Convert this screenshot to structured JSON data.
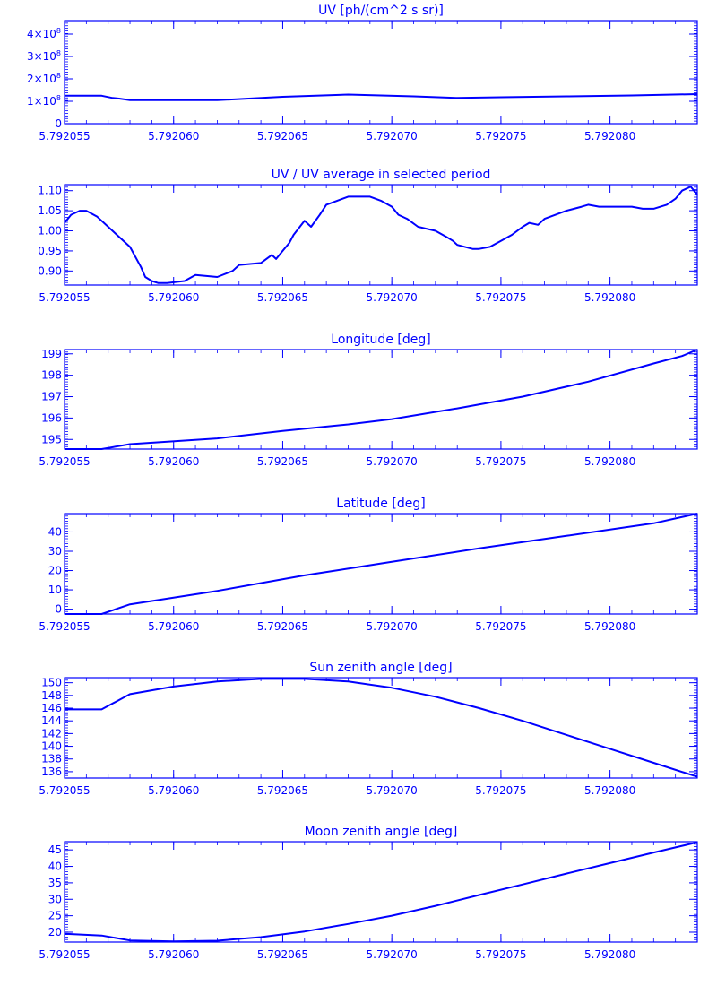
{
  "colors": {
    "foreground": "#0000ff",
    "background": "#ffffff"
  },
  "chart_data": [
    {
      "type": "line",
      "title": "UV [ph/(cm^2 s sr)]",
      "xlim": [
        5.792055,
        5.792084
      ],
      "ylim": [
        0,
        460000000.0
      ],
      "xticks": [
        "5.792055",
        "5.792060",
        "5.792065",
        "5.792070",
        "5.792075",
        "5.792080"
      ],
      "yticks": [
        {
          "value": 0,
          "mantissa": "0",
          "exp": ""
        },
        {
          "value": 100000000.0,
          "mantissa": "1×10",
          "exp": "8"
        },
        {
          "value": 200000000.0,
          "mantissa": "2×10",
          "exp": "8"
        },
        {
          "value": 300000000.0,
          "mantissa": "3×10",
          "exp": "8"
        },
        {
          "value": 400000000.0,
          "mantissa": "4×10",
          "exp": "8"
        }
      ],
      "series": [
        {
          "x": [
            5.792055,
            5.7920567,
            5.7920572,
            5.7920575,
            5.792058,
            5.792062,
            5.792065,
            5.792068,
            5.792071,
            5.792073,
            5.792075,
            5.792078,
            5.792081,
            5.792084
          ],
          "y": [
            125000000.0,
            125000000.0,
            115000000.0,
            112000000.0,
            105000000.0,
            105000000.0,
            120000000.0,
            130000000.0,
            122000000.0,
            115000000.0,
            118000000.0,
            122000000.0,
            126000000.0,
            132000000.0
          ]
        }
      ]
    },
    {
      "type": "line",
      "title": "UV / UV average in selected period",
      "xlim": [
        5.792055,
        5.792084
      ],
      "ylim": [
        0.865,
        1.115
      ],
      "xticks": [
        "5.792055",
        "5.792060",
        "5.792065",
        "5.792070",
        "5.792075",
        "5.792080"
      ],
      "yticks": [
        {
          "value": 0.9,
          "mantissa": "0.90",
          "exp": ""
        },
        {
          "value": 0.95,
          "mantissa": "0.95",
          "exp": ""
        },
        {
          "value": 1.0,
          "mantissa": "1.00",
          "exp": ""
        },
        {
          "value": 1.05,
          "mantissa": "1.05",
          "exp": ""
        },
        {
          "value": 1.1,
          "mantissa": "1.10",
          "exp": ""
        }
      ],
      "series": [
        {
          "x": [
            5.792055,
            5.7920553,
            5.7920557,
            5.792056,
            5.7920565,
            5.792058,
            5.7920585,
            5.7920587,
            5.792059,
            5.7920593,
            5.7920597,
            5.7920605,
            5.792061,
            5.792062,
            5.7920627,
            5.792063,
            5.792064,
            5.7920645,
            5.7920647,
            5.792065,
            5.7920653,
            5.7920655,
            5.792066,
            5.7920663,
            5.7920667,
            5.792067,
            5.7920675,
            5.792068,
            5.792069,
            5.7920695,
            5.79207,
            5.7920703,
            5.7920707,
            5.7920712,
            5.792072,
            5.7920725,
            5.7920728,
            5.792073,
            5.7920737,
            5.792074,
            5.7920745,
            5.792075,
            5.7920755,
            5.792076,
            5.7920763,
            5.7920767,
            5.792077,
            5.7920775,
            5.792078,
            5.7920787,
            5.792079,
            5.7920795,
            5.7920803,
            5.792081,
            5.7920815,
            5.792082,
            5.7920826,
            5.792083,
            5.7920833,
            5.7920837,
            5.792084
          ],
          "y": [
            1.02,
            1.04,
            1.05,
            1.05,
            1.035,
            0.96,
            0.91,
            0.885,
            0.875,
            0.87,
            0.87,
            0.875,
            0.89,
            0.885,
            0.9,
            0.915,
            0.92,
            0.94,
            0.93,
            0.95,
            0.97,
            0.99,
            1.025,
            1.01,
            1.04,
            1.065,
            1.075,
            1.085,
            1.085,
            1.075,
            1.06,
            1.04,
            1.03,
            1.01,
            1.0,
            0.985,
            0.975,
            0.965,
            0.955,
            0.955,
            0.96,
            0.975,
            0.99,
            1.01,
            1.02,
            1.015,
            1.03,
            1.04,
            1.05,
            1.06,
            1.065,
            1.06,
            1.06,
            1.06,
            1.055,
            1.055,
            1.065,
            1.08,
            1.1,
            1.11,
            1.09
          ]
        }
      ]
    },
    {
      "type": "line",
      "title": "Longitude [deg]",
      "xlim": [
        5.792055,
        5.792084
      ],
      "ylim": [
        194.55,
        199.2
      ],
      "xticks": [
        "5.792055",
        "5.792060",
        "5.792065",
        "5.792070",
        "5.792075",
        "5.792080"
      ],
      "yticks": [
        {
          "value": 195,
          "mantissa": "195",
          "exp": ""
        },
        {
          "value": 196,
          "mantissa": "196",
          "exp": ""
        },
        {
          "value": 197,
          "mantissa": "197",
          "exp": ""
        },
        {
          "value": 198,
          "mantissa": "198",
          "exp": ""
        },
        {
          "value": 199,
          "mantissa": "199",
          "exp": ""
        }
      ],
      "series": [
        {
          "x": [
            5.792055,
            5.792056,
            5.7920567,
            5.792058,
            5.792062,
            5.792065,
            5.792068,
            5.79207,
            5.792073,
            5.792076,
            5.792079,
            5.792082,
            5.7920833,
            5.792084
          ],
          "y": [
            194.55,
            194.55,
            194.55,
            194.78,
            195.05,
            195.4,
            195.7,
            195.95,
            196.45,
            197.0,
            197.7,
            198.55,
            198.9,
            199.2
          ]
        }
      ]
    },
    {
      "type": "line",
      "title": "Latitude [deg]",
      "xlim": [
        5.792055,
        5.792084
      ],
      "ylim": [
        -2.5,
        49.5
      ],
      "xticks": [
        "5.792055",
        "5.792060",
        "5.792065",
        "5.792070",
        "5.792075",
        "5.792080"
      ],
      "yticks": [
        {
          "value": 0,
          "mantissa": "0",
          "exp": ""
        },
        {
          "value": 10,
          "mantissa": "10",
          "exp": ""
        },
        {
          "value": 20,
          "mantissa": "20",
          "exp": ""
        },
        {
          "value": 30,
          "mantissa": "30",
          "exp": ""
        },
        {
          "value": 40,
          "mantissa": "40",
          "exp": ""
        }
      ],
      "series": [
        {
          "x": [
            5.792055,
            5.792056,
            5.7920567,
            5.792058,
            5.792062,
            5.792066,
            5.79207,
            5.792074,
            5.792078,
            5.792082,
            5.792084
          ],
          "y": [
            -2.5,
            -2.5,
            -2.5,
            2.5,
            9.5,
            17.5,
            24.5,
            31.5,
            38.0,
            44.5,
            49.5
          ]
        }
      ]
    },
    {
      "type": "line",
      "title": "Sun zenith angle [deg]",
      "xlim": [
        5.792055,
        5.792084
      ],
      "ylim": [
        135.0,
        150.8
      ],
      "xticks": [
        "5.792055",
        "5.792060",
        "5.792065",
        "5.792070",
        "5.792075",
        "5.792080"
      ],
      "yticks": [
        {
          "value": 136,
          "mantissa": "136",
          "exp": ""
        },
        {
          "value": 138,
          "mantissa": "138",
          "exp": ""
        },
        {
          "value": 140,
          "mantissa": "140",
          "exp": ""
        },
        {
          "value": 142,
          "mantissa": "142",
          "exp": ""
        },
        {
          "value": 144,
          "mantissa": "144",
          "exp": ""
        },
        {
          "value": 146,
          "mantissa": "146",
          "exp": ""
        },
        {
          "value": 148,
          "mantissa": "148",
          "exp": ""
        },
        {
          "value": 150,
          "mantissa": "150",
          "exp": ""
        }
      ],
      "series": [
        {
          "x": [
            5.792055,
            5.7920567,
            5.792058,
            5.79206,
            5.792062,
            5.792064,
            5.792066,
            5.792068,
            5.79207,
            5.792072,
            5.792074,
            5.792076,
            5.792078,
            5.79208,
            5.792082,
            5.792084
          ],
          "y": [
            145.8,
            145.8,
            148.2,
            149.4,
            150.2,
            150.6,
            150.6,
            150.2,
            149.2,
            147.8,
            146.0,
            144.0,
            141.8,
            139.6,
            137.4,
            135.2
          ]
        }
      ]
    },
    {
      "type": "line",
      "title": "Moon zenith angle [deg]",
      "xlim": [
        5.792055,
        5.792084
      ],
      "ylim": [
        17.0,
        47.5
      ],
      "xticks": [
        "5.792055",
        "5.792060",
        "5.792065",
        "5.792070",
        "5.792075",
        "5.792080"
      ],
      "yticks": [
        {
          "value": 20,
          "mantissa": "20",
          "exp": ""
        },
        {
          "value": 25,
          "mantissa": "25",
          "exp": ""
        },
        {
          "value": 30,
          "mantissa": "30",
          "exp": ""
        },
        {
          "value": 35,
          "mantissa": "35",
          "exp": ""
        },
        {
          "value": 40,
          "mantissa": "40",
          "exp": ""
        },
        {
          "value": 45,
          "mantissa": "45",
          "exp": ""
        }
      ],
      "series": [
        {
          "x": [
            5.792055,
            5.7920567,
            5.792058,
            5.79206,
            5.792062,
            5.792064,
            5.792066,
            5.792068,
            5.79207,
            5.792072,
            5.792074,
            5.792076,
            5.792078,
            5.79208,
            5.792082,
            5.792084
          ],
          "y": [
            19.5,
            19.0,
            17.5,
            17.2,
            17.4,
            18.5,
            20.2,
            22.5,
            25.0,
            28.0,
            31.3,
            34.5,
            37.8,
            41.0,
            44.2,
            47.3
          ]
        }
      ]
    }
  ]
}
